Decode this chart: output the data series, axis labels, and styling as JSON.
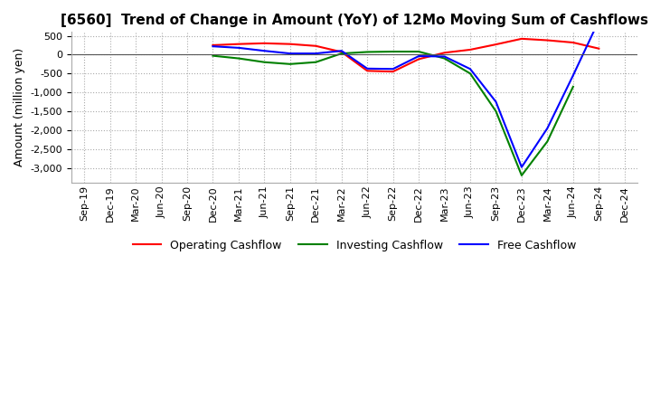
{
  "title": "[6560]  Trend of Change in Amount (YoY) of 12Mo Moving Sum of Cashflows",
  "ylabel": "Amount (million yen)",
  "ylim": [
    -3400,
    600
  ],
  "yticks": [
    500,
    0,
    -500,
    -1000,
    -1500,
    -2000,
    -2500,
    -3000
  ],
  "background_color": "#ffffff",
  "grid_color": "#aaaaaa",
  "dates": [
    "Sep-19",
    "Dec-19",
    "Mar-20",
    "Jun-20",
    "Sep-20",
    "Dec-20",
    "Mar-21",
    "Jun-21",
    "Sep-21",
    "Dec-21",
    "Mar-22",
    "Jun-22",
    "Sep-22",
    "Dec-22",
    "Mar-23",
    "Jun-23",
    "Sep-23",
    "Dec-23",
    "Mar-24",
    "Jun-24",
    "Sep-24",
    "Dec-24"
  ],
  "operating": [
    null,
    null,
    null,
    null,
    null,
    250,
    280,
    300,
    280,
    230,
    70,
    -430,
    -450,
    -120,
    50,
    130,
    270,
    420,
    380,
    320,
    160,
    null
  ],
  "investing": [
    null,
    null,
    null,
    null,
    null,
    -30,
    -100,
    -200,
    -250,
    -200,
    30,
    70,
    80,
    80,
    -100,
    -500,
    -1500,
    -3200,
    -2300,
    -850,
    null,
    null
  ],
  "free": [
    null,
    null,
    null,
    null,
    null,
    220,
    180,
    100,
    30,
    30,
    100,
    -370,
    -380,
    -40,
    -50,
    -380,
    -1250,
    -2980,
    -1950,
    -550,
    900,
    null
  ],
  "op_color": "#ff0000",
  "inv_color": "#008000",
  "free_color": "#0000ff",
  "title_fontsize": 11,
  "tick_fontsize": 8,
  "label_fontsize": 9
}
